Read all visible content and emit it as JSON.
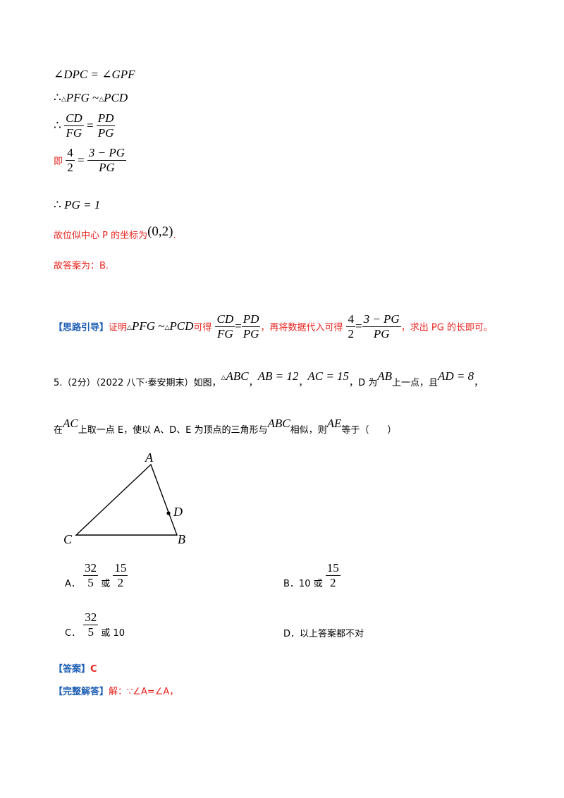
{
  "solution_prev": {
    "line1": {
      "left": "∠DPC",
      "right": "∠GPF"
    },
    "line2": {
      "therefore": "∴",
      "tri1": "PFG",
      "sim": "~",
      "tri2": "PCD"
    },
    "line3": {
      "therefore": "∴",
      "n1": "CD",
      "d1": "FG",
      "n2": "PD",
      "d2": "PG"
    },
    "line4": {
      "label": "即",
      "n1": "4",
      "d1": "2",
      "n2": "3 − PG",
      "d2": "PG"
    },
    "line5": {
      "therefore": "∴",
      "expr": "PG = 1"
    },
    "center": {
      "text": "故位似中心 P 的坐标为",
      "coord": "(0,2)",
      "end": "."
    },
    "answer": "故答案为：B."
  },
  "hint": {
    "tag": "【思路引导】",
    "t1": "证明",
    "tri1": "PFG",
    "sim": "~",
    "tri2": "PCD",
    "t2": "可得",
    "f1n": "CD",
    "f1d": "FG",
    "f2n": "PD",
    "f2d": "PG",
    "t3": "，再将数据代入可得",
    "f3n": "4",
    "f3d": "2",
    "f4n": "3 − PG",
    "f4d": "PG",
    "t4": "，求出 PG 的长即可。"
  },
  "question": {
    "prefix": "5.（2分）（2022 八下·泰安期末）如图，",
    "tri": "ABC",
    "ab": "AB = 12",
    "ac": "AC = 15",
    "d_on": "，D 为",
    "ab2": "AB",
    "d_on2": "上一点，且",
    "ad": "AD = 8",
    "comma": "，",
    "line2_a": "在",
    "ac2": "AC",
    "line2_b": "上取一点 E，使以 A、D、E 为顶点的三角形与",
    "abc2": "ABC",
    "line2_c": "相似，则",
    "ae": "AE",
    "line2_d": "等于（　　）"
  },
  "figure": {
    "labels": {
      "A": "A",
      "B": "B",
      "C": "C",
      "D": "D"
    }
  },
  "options": {
    "a": {
      "label": "A．",
      "f1n": "32",
      "f1d": "5",
      "or": "或",
      "f2n": "15",
      "f2d": "2"
    },
    "b": {
      "label": "B．10 或",
      "f1n": "15",
      "f1d": "2"
    },
    "c": {
      "label": "C．",
      "f1n": "32",
      "f1d": "5",
      "or": "或 10"
    },
    "d": {
      "label": "D．以上答案都不对"
    }
  },
  "answer": {
    "tag": "【答案】",
    "value": "C"
  },
  "full_solution": {
    "tag": "【完整解答】",
    "text": "解：∵∠A=∠A，"
  }
}
